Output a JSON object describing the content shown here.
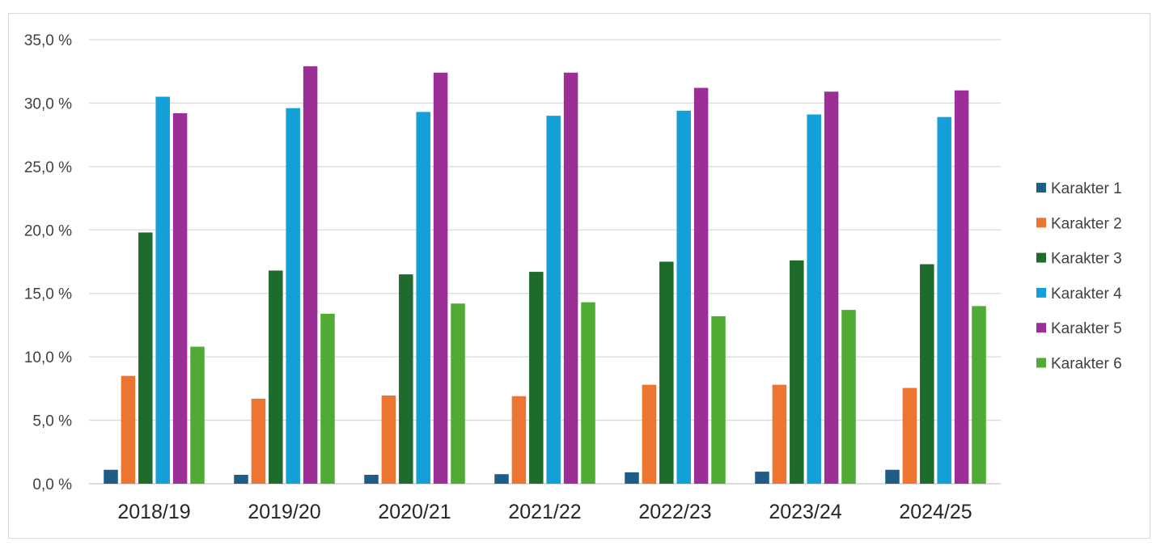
{
  "chart_data": {
    "type": "bar",
    "categories": [
      "2018/19",
      "2019/20",
      "2020/21",
      "2021/22",
      "2022/23",
      "2023/24",
      "2024/25"
    ],
    "series": [
      {
        "name": "Karakter 1",
        "color": "#1f5c86",
        "values": [
          1.1,
          0.7,
          0.7,
          0.75,
          0.9,
          0.95,
          1.1
        ]
      },
      {
        "name": "Karakter 2",
        "color": "#ed7532",
        "values": [
          8.5,
          6.7,
          6.95,
          6.9,
          7.8,
          7.8,
          7.55
        ]
      },
      {
        "name": "Karakter 3",
        "color": "#1e6b2c",
        "values": [
          19.8,
          16.8,
          16.5,
          16.7,
          17.5,
          17.6,
          17.3
        ]
      },
      {
        "name": "Karakter 4",
        "color": "#139fd8",
        "values": [
          30.5,
          29.6,
          29.3,
          29.0,
          29.4,
          29.1,
          28.9
        ]
      },
      {
        "name": "Karakter 5",
        "color": "#9c2f96",
        "values": [
          29.2,
          32.9,
          32.4,
          32.4,
          31.2,
          30.9,
          31.0
        ]
      },
      {
        "name": "Karakter 6",
        "color": "#4fab34",
        "values": [
          10.8,
          13.4,
          14.2,
          14.3,
          13.2,
          13.7,
          14.0
        ]
      }
    ],
    "y_ticks": [
      "0,0 %",
      "5,0 %",
      "10,0 %",
      "15,0 %",
      "20,0 %",
      "25,0 %",
      "30,0 %",
      "35,0 %"
    ],
    "ylim": [
      0,
      35
    ],
    "ytick_step": 5,
    "grid": true,
    "legend_position": "right",
    "title": "",
    "xlabel": "",
    "ylabel": ""
  }
}
